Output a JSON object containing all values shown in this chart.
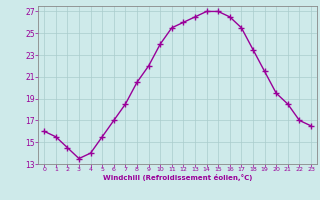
{
  "x": [
    0,
    1,
    2,
    3,
    4,
    5,
    6,
    7,
    8,
    9,
    10,
    11,
    12,
    13,
    14,
    15,
    16,
    17,
    18,
    19,
    20,
    21,
    22,
    23
  ],
  "y": [
    16.0,
    15.5,
    14.5,
    13.5,
    14.0,
    15.5,
    17.0,
    18.5,
    20.5,
    22.0,
    24.0,
    25.5,
    26.0,
    26.5,
    27.0,
    27.0,
    26.5,
    25.5,
    23.5,
    21.5,
    19.5,
    18.5,
    17.0,
    16.5
  ],
  "xlim": [
    -0.5,
    23.5
  ],
  "ylim": [
    13,
    27.5
  ],
  "yticks": [
    13,
    15,
    17,
    19,
    21,
    23,
    25,
    27
  ],
  "xticks": [
    0,
    1,
    2,
    3,
    4,
    5,
    6,
    7,
    8,
    9,
    10,
    11,
    12,
    13,
    14,
    15,
    16,
    17,
    18,
    19,
    20,
    21,
    22,
    23
  ],
  "xlabel": "Windchill (Refroidissement éolien,°C)",
  "line_color": "#990099",
  "marker": "+",
  "bg_color": "#ceeaea",
  "grid_color": "#aacccc",
  "spine_color": "#888888"
}
